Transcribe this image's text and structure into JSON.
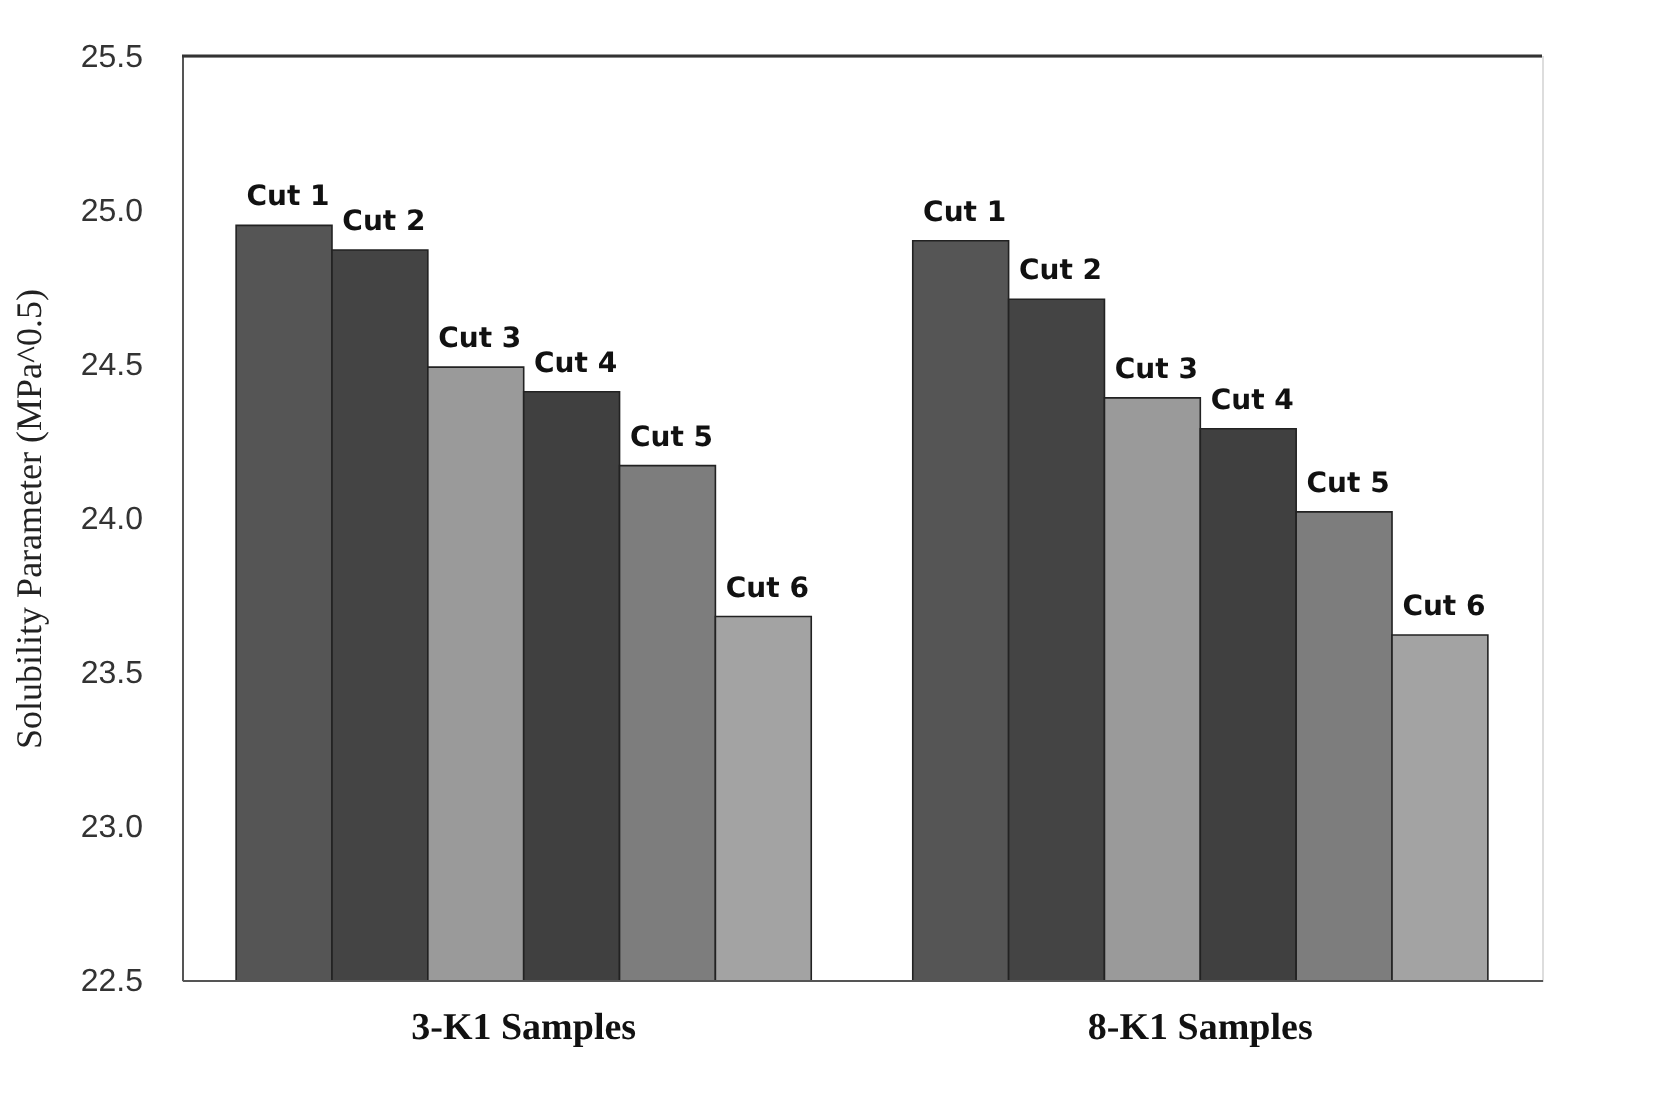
{
  "chart_data": {
    "type": "bar",
    "ylabel": "Solubility Parameter (MPa^0.5)",
    "categories": [
      "3-K1 Samples",
      "8-K1 Samples"
    ],
    "series": [
      {
        "name": "Cut 1",
        "color": "#555555",
        "values": [
          24.95,
          24.9
        ]
      },
      {
        "name": "Cut 2",
        "color": "#444444",
        "values": [
          24.87,
          24.71
        ]
      },
      {
        "name": "Cut 3",
        "color": "#9a9a9a",
        "values": [
          24.49,
          24.39
        ]
      },
      {
        "name": "Cut 4",
        "color": "#404040",
        "values": [
          24.41,
          24.29
        ]
      },
      {
        "name": "Cut 5",
        "color": "#7d7d7d",
        "values": [
          24.17,
          24.02
        ]
      },
      {
        "name": "Cut 6",
        "color": "#a3a3a3",
        "values": [
          23.68,
          23.62
        ]
      }
    ],
    "ylim": [
      22.5,
      25.5
    ],
    "yticks": [
      22.5,
      {
        "value": 23,
        "label": "23.0"
      },
      23.5,
      {
        "value": 24,
        "label": "24.0"
      },
      24.5,
      {
        "value": 25,
        "label": "25.0"
      },
      25.5
    ],
    "grid": false,
    "legend": false
  }
}
